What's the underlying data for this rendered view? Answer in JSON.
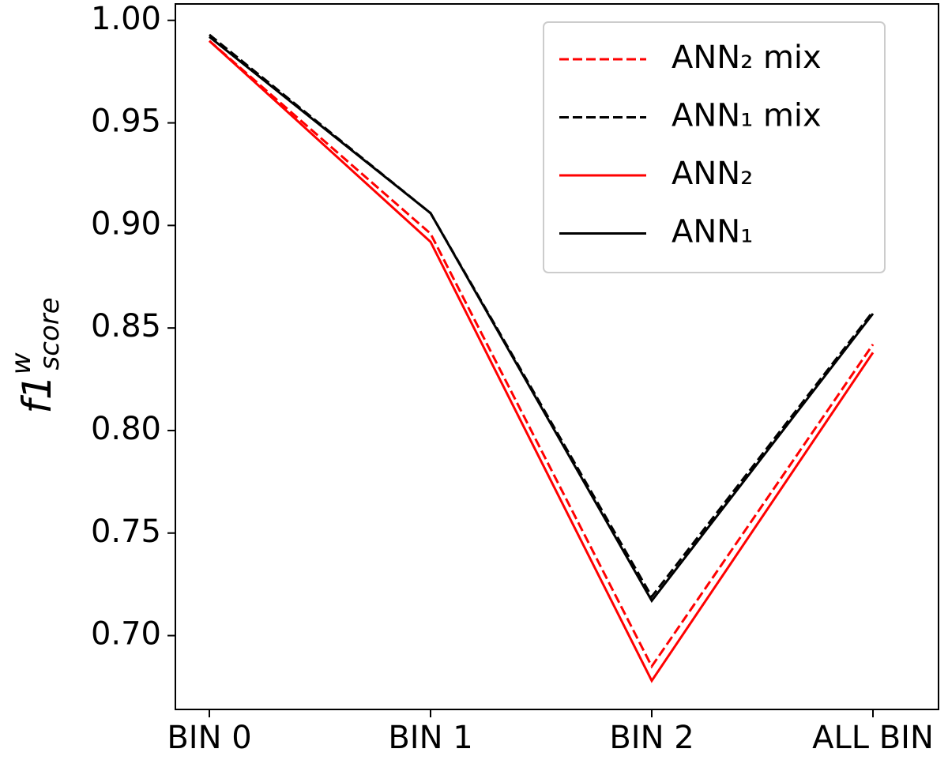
{
  "chart_data": {
    "type": "line",
    "ylabel": {
      "base": "f1",
      "sup": "w",
      "sub": "score"
    },
    "categories": [
      "BIN 0",
      "BIN 1",
      "BIN 2",
      "ALL BIN"
    ],
    "series": [
      {
        "name": "ANN₂ mix",
        "color": "#ff0000",
        "dashed": true,
        "values": [
          0.99,
          0.896,
          0.685,
          0.842
        ]
      },
      {
        "name": "ANN₁ mix",
        "color": "#000000",
        "dashed": true,
        "values": [
          0.993,
          0.906,
          0.719,
          0.858
        ]
      },
      {
        "name": "ANN₂",
        "color": "#ff0000",
        "dashed": false,
        "values": [
          0.99,
          0.892,
          0.678,
          0.838
        ]
      },
      {
        "name": "ANN₁",
        "color": "#000000",
        "dashed": false,
        "values": [
          0.992,
          0.906,
          0.717,
          0.857
        ]
      }
    ],
    "ylim": [
      0.664,
      1.008
    ],
    "yticks": [
      {
        "value": 0.7,
        "label": "0.70"
      },
      0.75,
      {
        "value": 0.8,
        "label": "0.80"
      },
      0.85,
      {
        "value": 0.9,
        "label": "0.90"
      },
      0.95,
      {
        "value": 1.0,
        "label": "1.00"
      }
    ],
    "legend": "upper right",
    "grid": false
  }
}
